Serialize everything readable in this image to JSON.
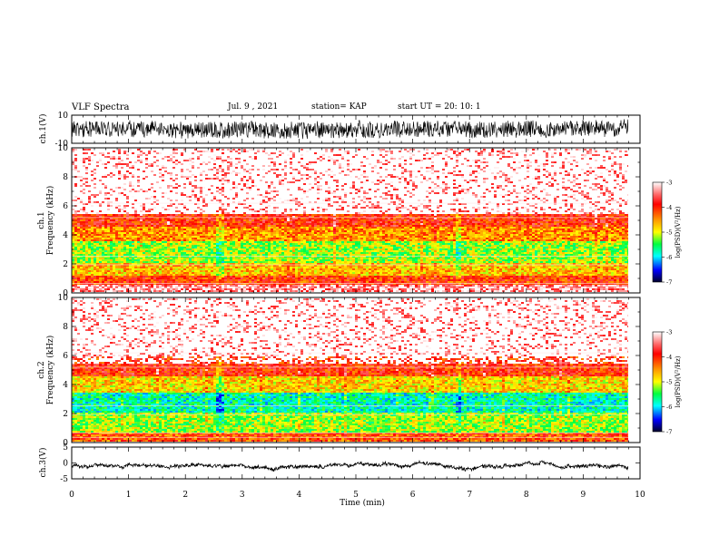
{
  "header": {
    "title": "VLF Spectra",
    "date": "Jul. 9 , 2021",
    "station": "station= KAP",
    "start": "start UT =  20: 10: 1"
  },
  "chart_data": [
    {
      "type": "line",
      "name": "waveform-ch1",
      "ylabel": "ch.1(V)",
      "ylim": [
        -10,
        10
      ],
      "yticks": [
        "10",
        "-10"
      ],
      "xlim": [
        0,
        10
      ],
      "description_values": {
        "mean": 0,
        "typical_range": [
          -7,
          7
        ]
      }
    },
    {
      "type": "heatmap",
      "name": "spectrogram-ch1",
      "ylabel_line1": "ch.1",
      "ylabel_line2": "Frequency (kHz)",
      "xlim": [
        0,
        10
      ],
      "ylim": [
        0,
        10
      ],
      "yticks": [
        "0",
        "2",
        "4",
        "6",
        "8",
        "10"
      ],
      "colorbar": {
        "label": "log(PSD)(V²/Hz)",
        "ticks": [
          "-3",
          "-4",
          "-5",
          "-6",
          "-7"
        ],
        "range": [
          -7,
          -3
        ]
      },
      "bands_khz": [
        {
          "from": 0,
          "to": 0.5,
          "level": -3.2
        },
        {
          "from": 0.5,
          "to": 1.2,
          "level": -3.9
        },
        {
          "from": 1.2,
          "to": 2.0,
          "level": -4.5
        },
        {
          "from": 2.0,
          "to": 3.6,
          "level": -5.0
        },
        {
          "from": 3.6,
          "to": 4.6,
          "level": -4.3
        },
        {
          "from": 4.6,
          "to": 5.5,
          "level": -3.8
        },
        {
          "from": 5.5,
          "to": 10,
          "level": -3.1
        }
      ],
      "colors": [
        "#ffffff",
        "#ff0000",
        "#ff9a00",
        "#ffff00",
        "#00ff40",
        "#00ffff",
        "#0000ff",
        "#00002a"
      ]
    },
    {
      "type": "heatmap",
      "name": "spectrogram-ch2",
      "ylabel_line1": "ch.2",
      "ylabel_line2": "Frequency (kHz)",
      "xlim": [
        0,
        10
      ],
      "ylim": [
        0,
        10
      ],
      "yticks": [
        "0",
        "2",
        "4",
        "6",
        "8",
        "10"
      ],
      "colorbar": {
        "label": "log(PSD)(V²/Hz)",
        "ticks": [
          "-3",
          "-4",
          "-5",
          "-6",
          "-7"
        ],
        "range": [
          -7,
          -3
        ]
      },
      "bands_khz": [
        {
          "from": 0,
          "to": 0.6,
          "level": -4.0
        },
        {
          "from": 0.6,
          "to": 2.0,
          "level": -5.0
        },
        {
          "from": 2.0,
          "to": 3.4,
          "level": -5.6
        },
        {
          "from": 3.4,
          "to": 4.6,
          "level": -4.6
        },
        {
          "from": 4.6,
          "to": 6.0,
          "level": -3.8
        },
        {
          "from": 6.0,
          "to": 10,
          "level": -3.1
        }
      ],
      "colors": [
        "#ffffff",
        "#ff0000",
        "#ff9a00",
        "#ffff00",
        "#00ff40",
        "#00ffff",
        "#0000ff",
        "#00002a"
      ]
    },
    {
      "type": "line",
      "name": "waveform-ch3",
      "ylabel": "ch.3(V)",
      "ylim": [
        -5,
        5
      ],
      "yticks": [
        "5",
        "0",
        "-5"
      ],
      "xlim": [
        0,
        10
      ],
      "description_values": {
        "mean": -1.2,
        "typical_range": [
          -1.6,
          -0.8
        ]
      },
      "xlabel": "Time (min)",
      "xticks": [
        "0",
        "1",
        "2",
        "3",
        "4",
        "5",
        "6",
        "7",
        "8",
        "9",
        "10"
      ]
    }
  ]
}
